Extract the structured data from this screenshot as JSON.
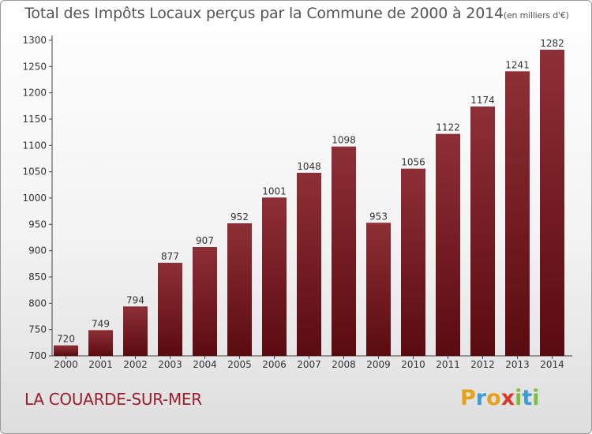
{
  "chart_data": {
    "type": "bar",
    "title": "Total des Impôts Locaux perçus par la Commune de 2000 à 2014",
    "unit": "(en milliers d'€)",
    "categories": [
      "2000",
      "2001",
      "2002",
      "2003",
      "2004",
      "2005",
      "2006",
      "2007",
      "2008",
      "2009",
      "2010",
      "2011",
      "2012",
      "2013",
      "2014"
    ],
    "values": [
      720,
      749,
      794,
      877,
      907,
      952,
      1001,
      1048,
      1098,
      953,
      1056,
      1122,
      1174,
      1241,
      1282
    ],
    "ylim": [
      700,
      1300
    ],
    "yticks": [
      700,
      750,
      800,
      850,
      900,
      950,
      1000,
      1050,
      1100,
      1150,
      1200,
      1250,
      1300
    ],
    "xlabel": "",
    "ylabel": "",
    "grid": false,
    "bar_color": "#7a1a22"
  },
  "commune": "LA COUARDE-SUR-MER",
  "logo": {
    "letters": [
      "P",
      "r",
      "o",
      "x",
      "i",
      "t",
      "i"
    ],
    "colors": [
      "#e8a218",
      "#3f9ad6",
      "#e8a218",
      "#d93a2c",
      "#7bbf3a",
      "#3f9ad6",
      "#7bbf3a"
    ]
  }
}
